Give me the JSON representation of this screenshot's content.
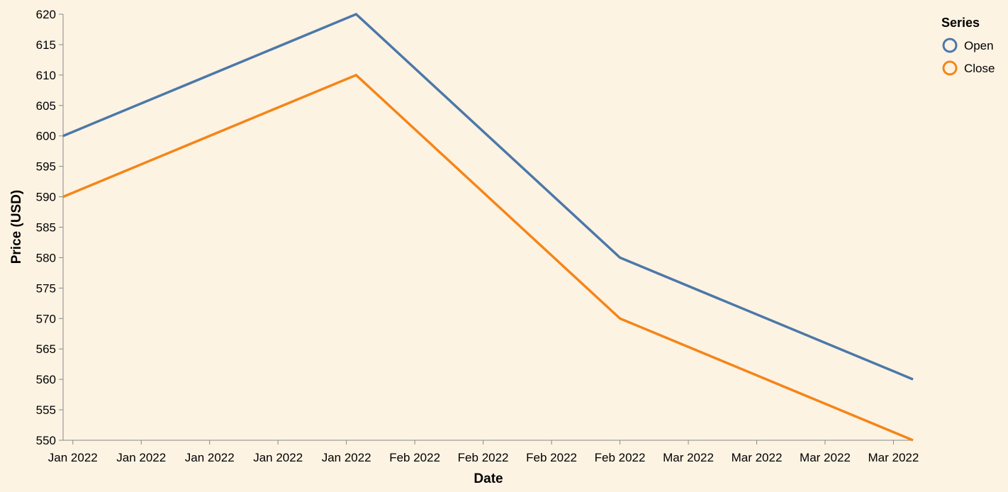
{
  "chart_data": {
    "type": "line",
    "title": "",
    "xlabel": "Date",
    "ylabel": "Price (USD)",
    "x": [
      "Jan 2022 (start)",
      "Jan 2022 (end)",
      "Feb 2022 (end)",
      "Mar 2022 (end)"
    ],
    "x_days": [
      0,
      30,
      57,
      87
    ],
    "x_range_days": [
      0,
      87
    ],
    "ylim": [
      550,
      620
    ],
    "ytick_step": 5,
    "xtick_labels": [
      "Jan 2022",
      "Jan 2022",
      "Jan 2022",
      "Jan 2022",
      "Jan 2022",
      "Feb 2022",
      "Feb 2022",
      "Feb 2022",
      "Feb 2022",
      "Mar 2022",
      "Mar 2022",
      "Mar 2022",
      "Mar 2022"
    ],
    "xtick_days": [
      1,
      8,
      15,
      22,
      29,
      36,
      43,
      50,
      57,
      64,
      71,
      78,
      85
    ],
    "grid": false,
    "legend": {
      "title": "Series",
      "position": "top-right"
    },
    "series": [
      {
        "name": "Open",
        "color": "#4c78a8",
        "values": [
          600,
          620,
          580,
          560
        ]
      },
      {
        "name": "Close",
        "color": "#f58518",
        "values": [
          590,
          610,
          570,
          550
        ]
      }
    ]
  }
}
